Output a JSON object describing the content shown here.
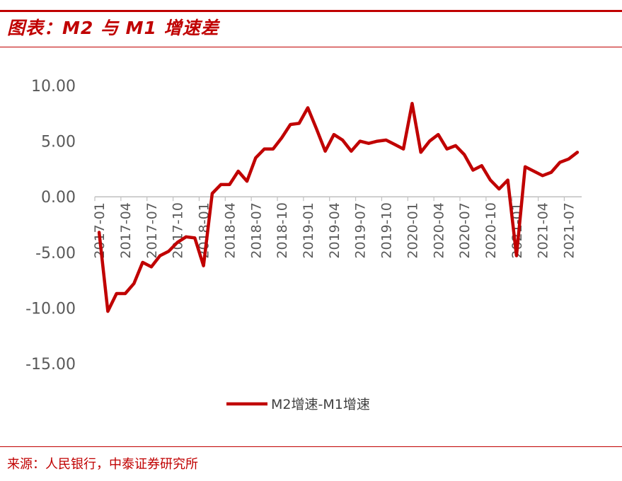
{
  "title": "图表：M2 与 M1 增速差",
  "source": "来源：人民银行，中泰证券研究所",
  "colors": {
    "accent": "#c00000",
    "series": "#c00000",
    "axis": "#bfbfbf",
    "text": "#595959"
  },
  "chart_data": {
    "type": "line",
    "ylim": [
      -15,
      10
    ],
    "yticks": [
      "10.00",
      "5.00",
      "0.00",
      "-5.00",
      "-10.00",
      "-15.00"
    ],
    "ytick_values": [
      10,
      5,
      0,
      -5,
      -10,
      -15
    ],
    "xtick_labels": [
      "2017-01",
      "2017-04",
      "2017-07",
      "2017-10",
      "2018-01",
      "2018-04",
      "2018-07",
      "2018-10",
      "2019-01",
      "2019-04",
      "2019-07",
      "2019-10",
      "2020-01",
      "2020-04",
      "2020-07",
      "2020-10",
      "2021-01",
      "2021-04",
      "2021-07"
    ],
    "legend": {
      "position": "bottom"
    },
    "series": [
      {
        "name": "M2增速-M1增速",
        "x": [
          "2017-01",
          "2017-02",
          "2017-03",
          "2017-04",
          "2017-05",
          "2017-06",
          "2017-07",
          "2017-08",
          "2017-09",
          "2017-10",
          "2017-11",
          "2017-12",
          "2018-01",
          "2018-02",
          "2018-03",
          "2018-04",
          "2018-05",
          "2018-06",
          "2018-07",
          "2018-08",
          "2018-09",
          "2018-10",
          "2018-11",
          "2018-12",
          "2019-01",
          "2019-02",
          "2019-03",
          "2019-04",
          "2019-05",
          "2019-06",
          "2019-07",
          "2019-08",
          "2019-09",
          "2019-10",
          "2019-11",
          "2019-12",
          "2020-01",
          "2020-02",
          "2020-03",
          "2020-04",
          "2020-05",
          "2020-06",
          "2020-07",
          "2020-08",
          "2020-09",
          "2020-10",
          "2020-11",
          "2020-12",
          "2021-01",
          "2021-02",
          "2021-03",
          "2021-04",
          "2021-05",
          "2021-06",
          "2021-07",
          "2021-08"
        ],
        "values": [
          -3.2,
          -10.3,
          -8.7,
          -8.7,
          -7.8,
          -5.9,
          -6.3,
          -5.3,
          -4.9,
          -4.1,
          -3.6,
          -3.7,
          -6.2,
          0.3,
          1.1,
          1.1,
          2.3,
          1.4,
          3.5,
          4.3,
          4.3,
          5.3,
          6.5,
          6.6,
          8.0,
          6.1,
          4.1,
          5.6,
          5.1,
          4.1,
          5.0,
          4.8,
          5.0,
          5.1,
          4.7,
          4.3,
          8.4,
          4.0,
          5.0,
          5.6,
          4.3,
          4.6,
          3.8,
          2.4,
          2.8,
          1.5,
          0.7,
          1.5,
          -5.3,
          2.7,
          2.3,
          1.9,
          2.2,
          3.1,
          3.4,
          4.0
        ]
      }
    ]
  }
}
